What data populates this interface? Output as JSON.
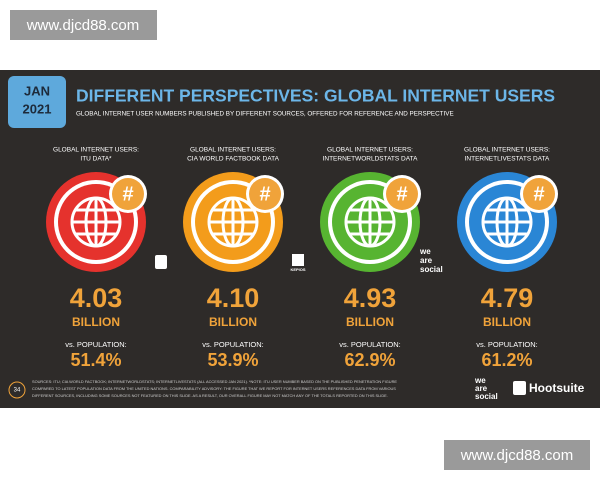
{
  "watermark": "www.djcd88.com",
  "header": {
    "badge_month": "JAN",
    "badge_year": "2021",
    "title": "DIFFERENT PERSPECTIVES: GLOBAL INTERNET USERS",
    "subtitle": "GLOBAL INTERNET USER NUMBERS PUBLISHED BY DIFFERENT SOURCES, OFFERED FOR REFERENCE AND PERSPECTIVE"
  },
  "cards": [
    {
      "label_lines": [
        "GLOBAL INTERNET USERS:",
        "ITU DATA*"
      ],
      "value": "4.03",
      "unit": "BILLION",
      "population_label": "vs. POPULATION:",
      "population": "51.4%",
      "color": "#e5322d"
    },
    {
      "label_lines": [
        "GLOBAL INTERNET USERS:",
        "CIA WORLD FACTBOOK DATA"
      ],
      "value": "4.10",
      "unit": "BILLION",
      "population_label": "vs. POPULATION:",
      "population": "53.9%",
      "color": "#f39c1b"
    },
    {
      "label_lines": [
        "GLOBAL INTERNET USERS:",
        "INTERNETWORLDSTATS DATA"
      ],
      "value": "4.93",
      "unit": "BILLION",
      "population_label": "vs. POPULATION:",
      "population": "62.9%",
      "color": "#57b431"
    },
    {
      "label_lines": [
        "GLOBAL INTERNET USERS:",
        "INTERNETLIVESTATS DATA"
      ],
      "value": "4.79",
      "unit": "BILLION",
      "population_label": "vs. POPULATION:",
      "population": "61.2%",
      "color": "#2a86d5"
    }
  ],
  "hash_symbol": "#",
  "logos": {
    "kepios": "KEPIOS",
    "we_are_social": [
      "we",
      "are",
      "social"
    ],
    "hootsuite": "Hootsuite"
  },
  "footer": {
    "page_number": "34",
    "sources_lines": [
      "SOURCES: ITU; CIA WORLD FACTBOOK; INTERNETWORLDSTATS; INTERNETLIVESTATS (ALL ACCESSED JAN 2021). *NOTE: ITU USER NUMBER BASED ON THE PUBLISHED PENETRATION FIGURE",
      "COMPARED TO LATEST POPULATION DATA FROM THE UNITED NATIONS. COMPARABILITY ADVISORY: THE FIGURE THAT WE REPORT FOR INTERNET USERS REFERENCES DATA FROM VARIOUS",
      "DIFFERENT SOURCES, INCLUDING SOME SOURCES NOT FEATURED ON THIS SLIDE. AS A RESULT, OUR OVERALL FIGURE MAY NOT MATCH ANY OF THE TOTALS REPORTED ON THIS SLIDE."
    ]
  }
}
